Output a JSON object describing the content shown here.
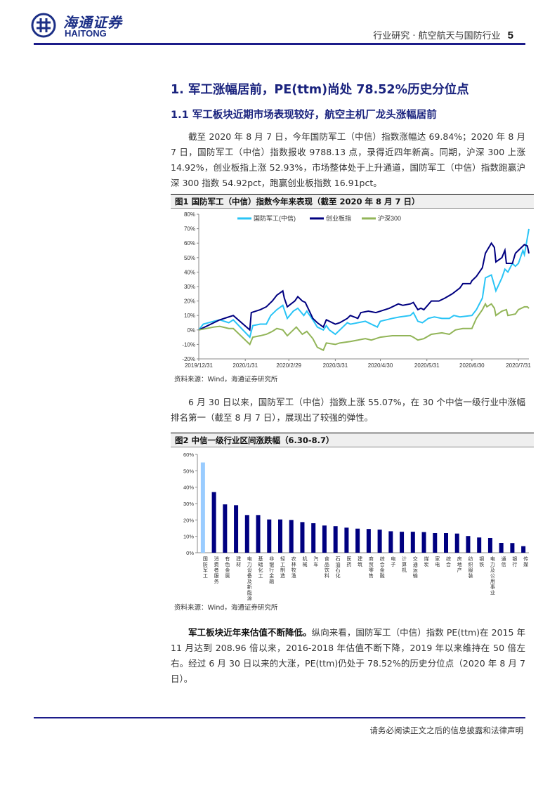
{
  "header": {
    "logo_cn": "海通证券",
    "logo_en": "HAITONG",
    "section": "行业研究 · 航空航天与国防行业",
    "page": "5"
  },
  "h1": "1. 军工涨幅居前，PE(ttm)尚处 78.52%历史分位点",
  "h2": "1.1 军工板块近期市场表现较好，航空主机厂龙头涨幅居前",
  "p1": "截至 2020 年 8 月 7 日，今年国防军工（中信）指数涨幅达 69.84%；2020 年 8 月 7 日，国防军工（中信）指数报收 9788.13 点，录得近四年新高。同期，沪深 300 上涨 14.92%，创业板指上涨 52.93%，市场整体处于上升通道，国防军工（中信）指数跑赢沪深 300 指数 54.92pct，跑赢创业板指数 16.91pct。",
  "fig1_title": "图1  国防军工（中信）指数今年来表现（截至 2020 年 8 月 7 日）",
  "p2": "6 月 30 日以来，国防军工（中信）指数上涨 55.07%，在 30 个中信一级行业中涨幅排名第一（截至 8 月 7 日），展现出了较强的弹性。",
  "fig2_title": "图2  中信一级行业区间涨跌幅（6.30-8.7）",
  "source": "资料来源：Wind，海通证券研究所",
  "p3_bold": "军工板块近年来估值不断降低。",
  "p3": "纵向来看，国防军工（中信）指数 PE(ttm)在 2015 年 11 月达到 208.96 倍以来，2016-2018 年估值不断下降，2019 年以来维持在 50 倍左右。经过 6 月 30 日以来的大涨，PE(ttm)仍处于 78.52%的历史分位点（2020 年 8 月 7 日）。",
  "footer": "请务必阅读正文之后的信息披露和法律声明",
  "colors": {
    "brand": "#1c2f86",
    "defense": "#29c4f6",
    "chinext": "#000080",
    "hs300": "#92b558",
    "bar": "#000080",
    "bar_highlight": "#99ccff"
  },
  "chart_data": [
    {
      "type": "line",
      "ylim": [
        -20,
        80
      ],
      "yticks": [
        -20,
        -10,
        0,
        10,
        20,
        30,
        40,
        50,
        60,
        70,
        80
      ],
      "yformat": "%",
      "grid": false,
      "legend": "top",
      "xlim": [
        "2019-12-31",
        "2020-08-07"
      ],
      "xticks": [
        "2019/12/31",
        "2020/1/31",
        "2020/2/29",
        "2020/3/31",
        "2020/4/30",
        "2020/5/31",
        "2020/6/30",
        "2020/7/31"
      ],
      "series": [
        {
          "name": "国防军工(中信)",
          "color": "#29c4f6",
          "points": [
            [
              "2019-12-31",
              0
            ],
            [
              "2020-01-03",
              4
            ],
            [
              "2020-01-10",
              6
            ],
            [
              "2020-01-14",
              7
            ],
            [
              "2020-01-20",
              5
            ],
            [
              "2020-01-23",
              7
            ],
            [
              "2020-02-03",
              -5
            ],
            [
              "2020-02-05",
              3
            ],
            [
              "2020-02-10",
              4
            ],
            [
              "2020-02-14",
              4
            ],
            [
              "2020-02-17",
              10
            ],
            [
              "2020-02-21",
              14
            ],
            [
              "2020-02-25",
              17
            ],
            [
              "2020-02-28",
              8
            ],
            [
              "2020-03-03",
              13
            ],
            [
              "2020-03-06",
              15
            ],
            [
              "2020-03-10",
              10
            ],
            [
              "2020-03-12",
              13
            ],
            [
              "2020-03-16",
              7
            ],
            [
              "2020-03-19",
              2
            ],
            [
              "2020-03-23",
              0
            ],
            [
              "2020-03-25",
              3
            ],
            [
              "2020-03-27",
              0
            ],
            [
              "2020-03-31",
              -3
            ],
            [
              "2020-04-03",
              0
            ],
            [
              "2020-04-08",
              5
            ],
            [
              "2020-04-10",
              4
            ],
            [
              "2020-04-15",
              5
            ],
            [
              "2020-04-20",
              6
            ],
            [
              "2020-04-24",
              4
            ],
            [
              "2020-04-28",
              2
            ],
            [
              "2020-04-30",
              6
            ],
            [
              "2020-05-08",
              8
            ],
            [
              "2020-05-13",
              9
            ],
            [
              "2020-05-20",
              10
            ],
            [
              "2020-05-22",
              12
            ],
            [
              "2020-05-25",
              6
            ],
            [
              "2020-05-28",
              5
            ],
            [
              "2020-06-01",
              8
            ],
            [
              "2020-06-05",
              9
            ],
            [
              "2020-06-10",
              8
            ],
            [
              "2020-06-15",
              8
            ],
            [
              "2020-06-18",
              10
            ],
            [
              "2020-06-22",
              9
            ],
            [
              "2020-06-30",
              10
            ],
            [
              "2020-07-03",
              14
            ],
            [
              "2020-07-07",
              22
            ],
            [
              "2020-07-09",
              36
            ],
            [
              "2020-07-13",
              38
            ],
            [
              "2020-07-16",
              27
            ],
            [
              "2020-07-20",
              36
            ],
            [
              "2020-07-22",
              42
            ],
            [
              "2020-07-24",
              40
            ],
            [
              "2020-07-27",
              46
            ],
            [
              "2020-07-29",
              44
            ],
            [
              "2020-07-31",
              46
            ],
            [
              "2020-08-03",
              55
            ],
            [
              "2020-08-04",
              52
            ],
            [
              "2020-08-07",
              69.84
            ]
          ]
        },
        {
          "name": "创业板指",
          "color": "#000080",
          "points": [
            [
              "2019-12-31",
              0
            ],
            [
              "2020-01-10",
              5
            ],
            [
              "2020-01-14",
              7
            ],
            [
              "2020-01-20",
              9
            ],
            [
              "2020-01-23",
              10
            ],
            [
              "2020-02-03",
              0
            ],
            [
              "2020-02-04",
              12
            ],
            [
              "2020-02-10",
              14
            ],
            [
              "2020-02-14",
              16
            ],
            [
              "2020-02-18",
              20
            ],
            [
              "2020-02-21",
              24
            ],
            [
              "2020-02-25",
              27
            ],
            [
              "2020-02-26",
              22
            ],
            [
              "2020-02-28",
              16
            ],
            [
              "2020-03-04",
              20
            ],
            [
              "2020-03-06",
              23
            ],
            [
              "2020-03-09",
              20
            ],
            [
              "2020-03-11",
              19
            ],
            [
              "2020-03-16",
              8
            ],
            [
              "2020-03-19",
              5
            ],
            [
              "2020-03-23",
              2
            ],
            [
              "2020-03-25",
              7
            ],
            [
              "2020-03-31",
              4
            ],
            [
              "2020-04-03",
              5
            ],
            [
              "2020-04-08",
              8
            ],
            [
              "2020-04-10",
              10
            ],
            [
              "2020-04-15",
              8
            ],
            [
              "2020-04-17",
              12
            ],
            [
              "2020-04-22",
              13
            ],
            [
              "2020-04-27",
              12
            ],
            [
              "2020-04-30",
              13
            ],
            [
              "2020-05-06",
              15
            ],
            [
              "2020-05-12",
              18
            ],
            [
              "2020-05-15",
              17
            ],
            [
              "2020-05-20",
              18
            ],
            [
              "2020-05-22",
              19
            ],
            [
              "2020-05-25",
              14
            ],
            [
              "2020-05-27",
              15
            ],
            [
              "2020-05-29",
              14
            ],
            [
              "2020-06-03",
              20
            ],
            [
              "2020-06-08",
              20
            ],
            [
              "2020-06-12",
              22
            ],
            [
              "2020-06-17",
              25
            ],
            [
              "2020-06-22",
              29
            ],
            [
              "2020-06-24",
              32
            ],
            [
              "2020-06-29",
              32
            ],
            [
              "2020-06-30",
              34
            ],
            [
              "2020-07-03",
              37
            ],
            [
              "2020-07-07",
              43
            ],
            [
              "2020-07-09",
              53
            ],
            [
              "2020-07-13",
              60
            ],
            [
              "2020-07-15",
              57
            ],
            [
              "2020-07-16",
              47
            ],
            [
              "2020-07-20",
              50
            ],
            [
              "2020-07-22",
              55
            ],
            [
              "2020-07-23",
              46
            ],
            [
              "2020-07-27",
              46
            ],
            [
              "2020-07-29",
              53
            ],
            [
              "2020-07-31",
              55
            ],
            [
              "2020-08-04",
              59
            ],
            [
              "2020-08-06",
              58
            ],
            [
              "2020-08-07",
              52.93
            ]
          ]
        },
        {
          "name": "沪深300",
          "color": "#92b558",
          "points": [
            [
              "2019-12-31",
              0
            ],
            [
              "2020-01-10",
              2
            ],
            [
              "2020-01-14",
              2.5
            ],
            [
              "2020-01-20",
              1
            ],
            [
              "2020-01-23",
              1
            ],
            [
              "2020-02-03",
              -10
            ],
            [
              "2020-02-05",
              -5
            ],
            [
              "2020-02-10",
              -4
            ],
            [
              "2020-02-14",
              -3
            ],
            [
              "2020-02-18",
              -1
            ],
            [
              "2020-02-21",
              1
            ],
            [
              "2020-02-25",
              0
            ],
            [
              "2020-02-28",
              -4
            ],
            [
              "2020-03-05",
              2
            ],
            [
              "2020-03-09",
              -3
            ],
            [
              "2020-03-12",
              -1
            ],
            [
              "2020-03-16",
              -6
            ],
            [
              "2020-03-19",
              -12
            ],
            [
              "2020-03-23",
              -14
            ],
            [
              "2020-03-25",
              -9
            ],
            [
              "2020-03-31",
              -10
            ],
            [
              "2020-04-03",
              -9
            ],
            [
              "2020-04-10",
              -8
            ],
            [
              "2020-04-20",
              -6
            ],
            [
              "2020-04-24",
              -7
            ],
            [
              "2020-04-30",
              -5
            ],
            [
              "2020-05-08",
              -4
            ],
            [
              "2020-05-15",
              -4
            ],
            [
              "2020-05-20",
              -4
            ],
            [
              "2020-05-22",
              -5
            ],
            [
              "2020-05-25",
              -7
            ],
            [
              "2020-05-29",
              -6
            ],
            [
              "2020-06-03",
              -3
            ],
            [
              "2020-06-10",
              -2
            ],
            [
              "2020-06-15",
              -3
            ],
            [
              "2020-06-19",
              0
            ],
            [
              "2020-06-24",
              1
            ],
            [
              "2020-06-30",
              1
            ],
            [
              "2020-07-03",
              8
            ],
            [
              "2020-07-07",
              14
            ],
            [
              "2020-07-09",
              18
            ],
            [
              "2020-07-10",
              16
            ],
            [
              "2020-07-13",
              18
            ],
            [
              "2020-07-15",
              15
            ],
            [
              "2020-07-16",
              10
            ],
            [
              "2020-07-20",
              13
            ],
            [
              "2020-07-23",
              14
            ],
            [
              "2020-07-24",
              10
            ],
            [
              "2020-07-29",
              11
            ],
            [
              "2020-07-31",
              14
            ],
            [
              "2020-08-04",
              16
            ],
            [
              "2020-08-06",
              16
            ],
            [
              "2020-08-07",
              14.92
            ]
          ]
        }
      ]
    },
    {
      "type": "bar",
      "ylim": [
        0,
        60
      ],
      "yticks": [
        0,
        10,
        20,
        30,
        40,
        50,
        60
      ],
      "yformat": "%",
      "grid": false,
      "categories": [
        "国防军工",
        "消费者服务",
        "有色金属",
        "建材",
        "电力设备及新能源",
        "基础化工",
        "非银行金融",
        "轻工制造",
        "农林牧渔",
        "机械",
        "汽车",
        "食品饮料",
        "石油石化",
        "医药",
        "建筑",
        "商贸零售",
        "综合金融",
        "电子",
        "计算机",
        "交通运输",
        "煤炭",
        "家电",
        "综合",
        "房地产",
        "纺织服装",
        "钢铁",
        "电力及公用事业",
        "通信",
        "银行",
        "传媒"
      ],
      "values": [
        55.07,
        37,
        29.5,
        29,
        23,
        23,
        20.3,
        20.3,
        20,
        18.7,
        18,
        16.6,
        16.2,
        15.3,
        14.7,
        14.5,
        14.1,
        13.1,
        12.8,
        12.8,
        12.6,
        12,
        12,
        11.7,
        10.2,
        9.3,
        9,
        6,
        5.9,
        4
      ],
      "highlight": "国防军工"
    }
  ]
}
